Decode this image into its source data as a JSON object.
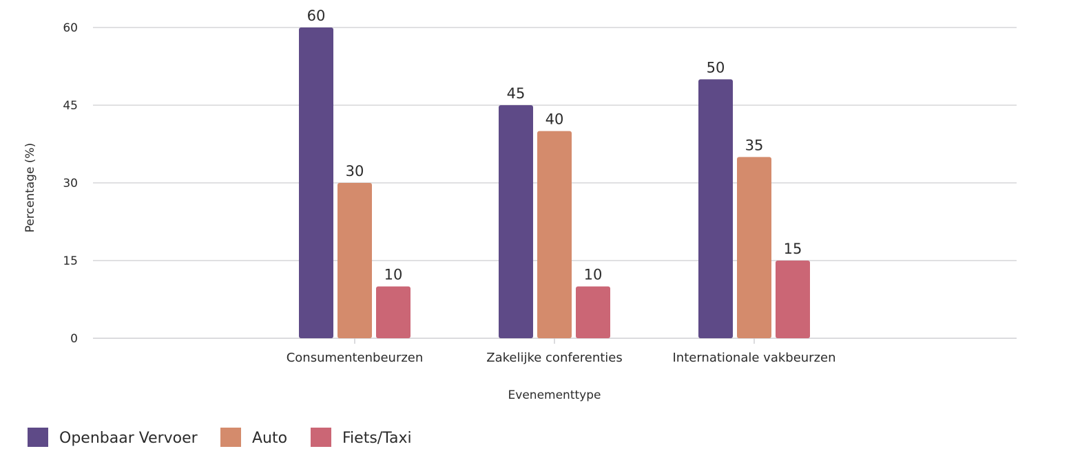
{
  "chart_data": {
    "type": "bar",
    "title": "",
    "xlabel": "Evenementtype",
    "ylabel": "Percentage (%)",
    "categories": [
      "Consumentenbeurzen",
      "Zakelijke conferenties",
      "Internationale vakbeurzen"
    ],
    "series": [
      {
        "name": "Openbaar Vervoer",
        "values": [
          60,
          45,
          50
        ],
        "color": "#5e4a87"
      },
      {
        "name": "Auto",
        "values": [
          30,
          40,
          35
        ],
        "color": "#d48b6c"
      },
      {
        "name": "Fiets/Taxi",
        "values": [
          10,
          10,
          15
        ],
        "color": "#cb6675"
      }
    ],
    "ylim": [
      0,
      60
    ],
    "yticks": [
      0,
      15,
      30,
      45,
      60
    ],
    "grid": true,
    "data_labels": true,
    "legend_position": "bottom-left"
  }
}
